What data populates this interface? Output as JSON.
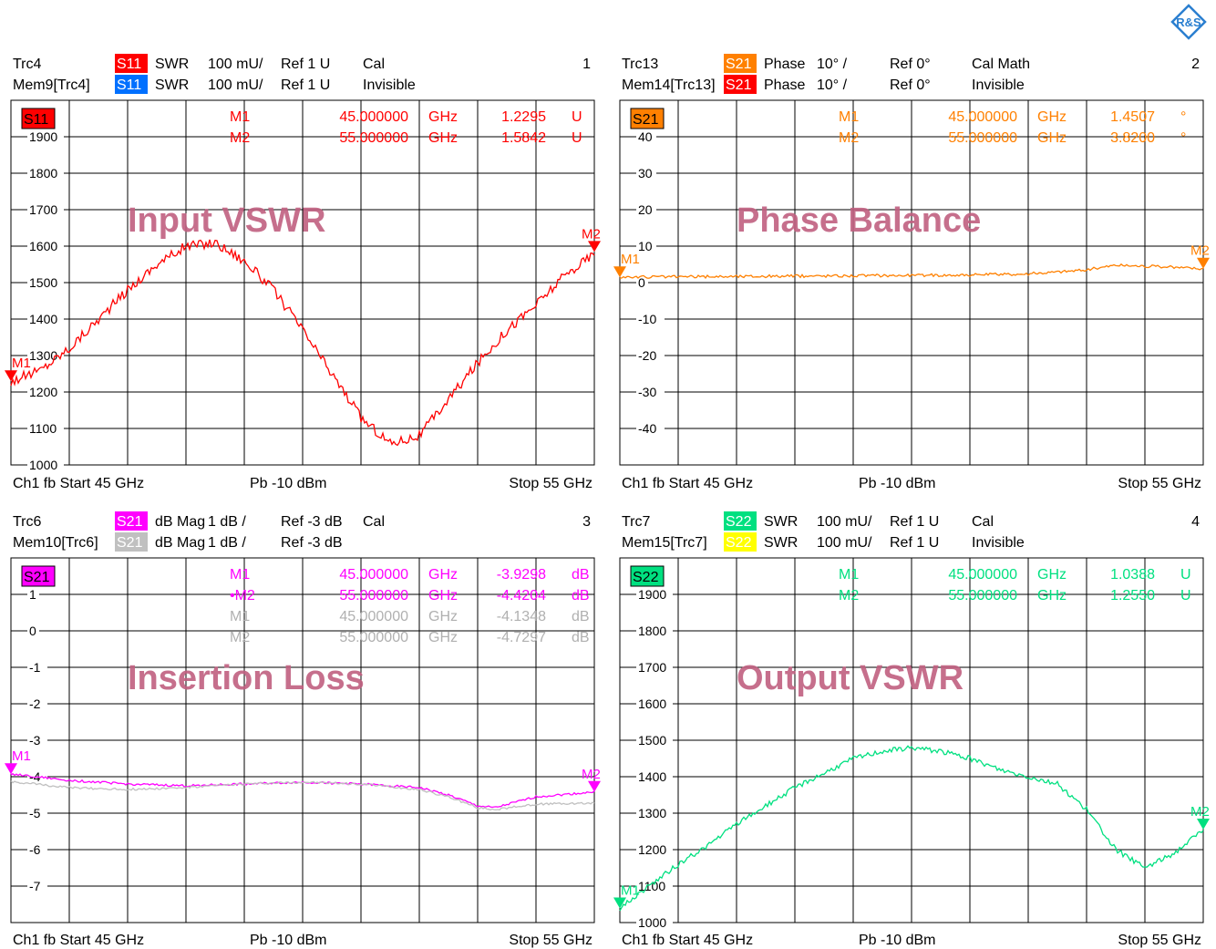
{
  "colors": {
    "S11": "#ff0000",
    "S11mem": "#0070ff",
    "S21phase": "#ff8000",
    "S21phasemem": "#ff0000",
    "S21": "#ff00ff",
    "S21mem": "#c0c0c0",
    "S22": "#00e080",
    "S22mem": "#ffff00",
    "watermark": "#c06080",
    "grid": "#000000"
  },
  "logo": "rohde-schwarz-logo",
  "chart_data": [
    {
      "type": "line",
      "number": "1",
      "watermark": "Input VSWR",
      "header": [
        {
          "trc": "Trc4",
          "badge": "S11",
          "color": "#ff0000",
          "fmt": "SWR",
          "scale": "100 mU/",
          "ref": "Ref 1 U",
          "status": "Cal"
        },
        {
          "trc": "Mem9[Trc4]",
          "badge": "S11",
          "color": "#0070ff",
          "fmt": "SWR",
          "scale": "100 mU/",
          "ref": "Ref 1 U",
          "status": "Invisible"
        }
      ],
      "trace_label": "S11",
      "trace_label_color": "#ff0000",
      "ylim": [
        1000,
        2000
      ],
      "ytick_labels": [
        "1900",
        "1800",
        "1700",
        "1600",
        "1500",
        "1400",
        "1300",
        "1200",
        "1100",
        "1000"
      ],
      "ytick_values": [
        1900,
        1800,
        1700,
        1600,
        1500,
        1400,
        1300,
        1200,
        1100,
        1000
      ],
      "xlim": [
        45,
        55
      ],
      "markers": [
        {
          "name": "M1",
          "freq": "45.000000",
          "unit": "GHz",
          "value": "1.2295",
          "vunit": "U",
          "color": "#ff0000"
        },
        {
          "name": "M2",
          "freq": "55.000000",
          "unit": "GHz",
          "value": "1.5842",
          "vunit": "U",
          "color": "#ff0000"
        }
      ],
      "marker_points": [
        {
          "x": 45,
          "y": 1229.5,
          "label": "M1"
        },
        {
          "x": 55,
          "y": 1584.2,
          "label": "M2"
        }
      ],
      "series": [
        {
          "name": "S11",
          "color": "#ff0000",
          "noise": 14,
          "x": [
            45,
            45.5,
            46,
            46.5,
            47,
            47.5,
            48,
            48.5,
            49,
            49.5,
            50,
            50.5,
            51,
            51.5,
            52,
            52.5,
            53,
            53.5,
            54,
            54.5,
            55
          ],
          "y": [
            1229,
            1260,
            1320,
            1400,
            1480,
            1550,
            1600,
            1610,
            1560,
            1480,
            1370,
            1250,
            1130,
            1060,
            1080,
            1180,
            1280,
            1370,
            1440,
            1520,
            1580
          ]
        }
      ],
      "footer": {
        "left": "Ch1  fb  Start  45 GHz",
        "mid": "Pb   -10 dBm",
        "right": "Stop  55 GHz"
      }
    },
    {
      "type": "line",
      "number": "2",
      "watermark": "Phase Balance",
      "header": [
        {
          "trc": "Trc13",
          "badge": "S21",
          "color": "#ff8000",
          "fmt": "Phase",
          "scale": "10° /",
          "ref": "Ref 0°",
          "status": "Cal Math"
        },
        {
          "trc": "Mem14[Trc13]",
          "badge": "S21",
          "color": "#ff0000",
          "fmt": "Phase",
          "scale": "10° /",
          "ref": "Ref 0°",
          "status": "Invisible"
        }
      ],
      "trace_label": "S21",
      "trace_label_color": "#ff8000",
      "ylim": [
        -50,
        50
      ],
      "ytick_labels": [
        "40",
        "30",
        "20",
        "10",
        "0",
        "-10",
        "-20",
        "-30",
        "-40"
      ],
      "ytick_values": [
        40,
        30,
        20,
        10,
        0,
        -10,
        -20,
        -30,
        -40
      ],
      "xlim": [
        45,
        55
      ],
      "markers": [
        {
          "name": "M1",
          "freq": "45.000000",
          "unit": "GHz",
          "value": "1.4507",
          "vunit": "°",
          "color": "#ff8000"
        },
        {
          "name": "M2",
          "freq": "55.000000",
          "unit": "GHz",
          "value": "3.8200",
          "vunit": "°",
          "color": "#ff8000"
        }
      ],
      "marker_points": [
        {
          "x": 45,
          "y": 1.45,
          "label": "M1"
        },
        {
          "x": 55,
          "y": 3.82,
          "label": "M2"
        }
      ],
      "series": [
        {
          "name": "S21",
          "color": "#ff8000",
          "noise": 0.4,
          "x": [
            45,
            46,
            47,
            48,
            49,
            50,
            51,
            52,
            53,
            53.5,
            54,
            54.5,
            55
          ],
          "y": [
            1.5,
            1.6,
            1.7,
            1.8,
            1.9,
            2.0,
            2.1,
            2.4,
            3.5,
            4.8,
            4.5,
            4.2,
            3.8
          ]
        }
      ],
      "footer": {
        "left": "Ch1  fb  Start  45 GHz",
        "mid": "Pb   -10 dBm",
        "right": "Stop  55 GHz"
      }
    },
    {
      "type": "line",
      "number": "3",
      "watermark": "Insertion Loss",
      "header": [
        {
          "trc": "Trc6",
          "badge": "S21",
          "color": "#ff00ff",
          "fmt": "dB Mag",
          "scale": "1 dB /",
          "ref": "Ref -3 dB",
          "status": "Cal"
        },
        {
          "trc": "Mem10[Trc6]",
          "badge": "S21",
          "color": "#c0c0c0",
          "fmt": "dB Mag",
          "scale": "1 dB /",
          "ref": "Ref -3 dB",
          "status": ""
        }
      ],
      "trace_label": "S21",
      "trace_label_color": "#ff00ff",
      "ylim": [
        -8,
        2
      ],
      "ytick_labels": [
        "1",
        "0",
        "-1",
        "-2",
        "-3",
        "-4",
        "-5",
        "-6",
        "-7"
      ],
      "ytick_values": [
        1,
        0,
        -1,
        -2,
        -3,
        -4,
        -5,
        -6,
        -7
      ],
      "xlim": [
        45,
        55
      ],
      "markers": [
        {
          "name": "M1",
          "freq": "45.000000",
          "unit": "GHz",
          "value": "-3.9298",
          "vunit": "dB",
          "color": "#ff00ff"
        },
        {
          "name": "•M2",
          "freq": "55.000000",
          "unit": "GHz",
          "value": "-4.4204",
          "vunit": "dB",
          "color": "#ff00ff"
        },
        {
          "name": "M1",
          "freq": "45.000000",
          "unit": "GHz",
          "value": "-4.1348",
          "vunit": "dB",
          "color": "#b0b0b0"
        },
        {
          "name": "M2",
          "freq": "55.000000",
          "unit": "GHz",
          "value": "-4.7297",
          "vunit": "dB",
          "color": "#b0b0b0"
        }
      ],
      "marker_points": [
        {
          "x": 45,
          "y": -3.93,
          "label": "M1"
        },
        {
          "x": 55,
          "y": -4.42,
          "label": "M2"
        }
      ],
      "series": [
        {
          "name": "S21",
          "color": "#ff00ff",
          "noise": 0.03,
          "x": [
            45,
            46,
            47,
            48,
            49,
            50,
            51,
            52,
            52.5,
            53,
            53.3,
            54,
            55
          ],
          "y": [
            -3.93,
            -4.1,
            -4.2,
            -4.25,
            -4.2,
            -4.15,
            -4.2,
            -4.3,
            -4.5,
            -4.8,
            -4.85,
            -4.55,
            -4.42
          ]
        },
        {
          "name": "S21 Mem",
          "color": "#c0c0c0",
          "noise": 0.03,
          "x": [
            45,
            46,
            47,
            48,
            49,
            50,
            51,
            52,
            52.5,
            53,
            53.3,
            54,
            55
          ],
          "y": [
            -4.13,
            -4.3,
            -4.35,
            -4.3,
            -4.2,
            -4.15,
            -4.2,
            -4.35,
            -4.55,
            -4.85,
            -4.9,
            -4.75,
            -4.73
          ]
        }
      ],
      "footer": {
        "left": "Ch1  fb  Start  45 GHz",
        "mid": "Pb   -10 dBm",
        "right": "Stop  55 GHz"
      }
    },
    {
      "type": "line",
      "number": "4",
      "watermark": "Output VSWR",
      "header": [
        {
          "trc": "Trc7",
          "badge": "S22",
          "color": "#00e080",
          "fmt": "SWR",
          "scale": "100 mU/",
          "ref": "Ref 1 U",
          "status": "Cal"
        },
        {
          "trc": "Mem15[Trc7]",
          "badge": "S22",
          "color": "#ffff00",
          "fmt": "SWR",
          "scale": "100 mU/",
          "ref": "Ref 1 U",
          "status": "Invisible"
        }
      ],
      "trace_label": "S22",
      "trace_label_color": "#00e080",
      "ylim": [
        1000,
        2000
      ],
      "ytick_labels": [
        "1900",
        "1800",
        "1700",
        "1600",
        "1500",
        "1400",
        "1300",
        "1200",
        "1100",
        "1000"
      ],
      "ytick_values": [
        1900,
        1800,
        1700,
        1600,
        1500,
        1400,
        1300,
        1200,
        1100,
        1000
      ],
      "xlim": [
        45,
        55
      ],
      "markers": [
        {
          "name": "M1",
          "freq": "45.000000",
          "unit": "GHz",
          "value": "1.0388",
          "vunit": "U",
          "color": "#00e080"
        },
        {
          "name": "M2",
          "freq": "55.000000",
          "unit": "GHz",
          "value": "1.2550",
          "vunit": "U",
          "color": "#00e080"
        }
      ],
      "marker_points": [
        {
          "x": 45,
          "y": 1038.8,
          "label": "M1"
        },
        {
          "x": 55,
          "y": 1255,
          "label": "M2"
        }
      ],
      "series": [
        {
          "name": "S22",
          "color": "#00e080",
          "noise": 7,
          "x": [
            45,
            45.5,
            46,
            46.5,
            47,
            47.5,
            48,
            48.5,
            49,
            49.5,
            50,
            50.5,
            51,
            51.5,
            52,
            52.5,
            53,
            53.5,
            54,
            54.5,
            55
          ],
          "y": [
            1039,
            1100,
            1160,
            1210,
            1270,
            1320,
            1370,
            1410,
            1450,
            1470,
            1480,
            1470,
            1450,
            1420,
            1400,
            1380,
            1310,
            1200,
            1150,
            1190,
            1255
          ]
        }
      ],
      "footer": {
        "left": "Ch1  fb  Start  45 GHz",
        "mid": "Pb   -10 dBm",
        "right": "Stop  55 GHz"
      }
    }
  ]
}
